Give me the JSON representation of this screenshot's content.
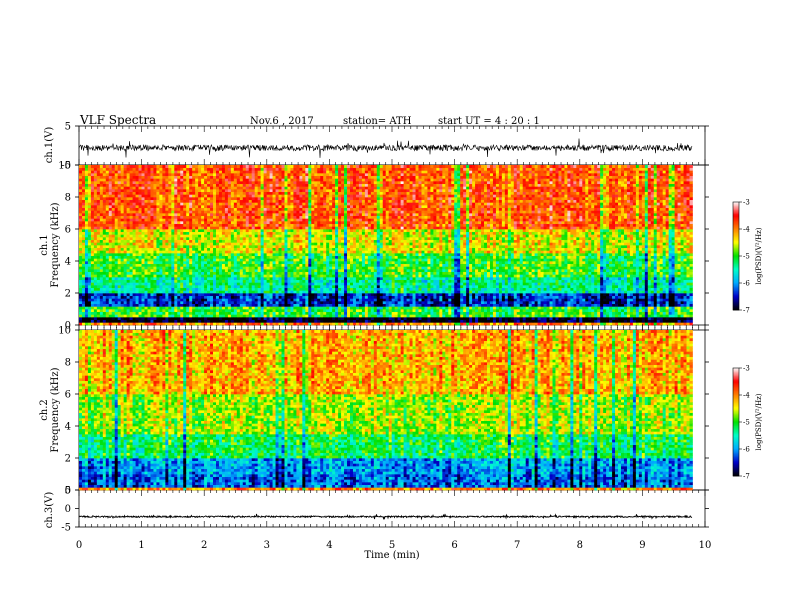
{
  "header": {
    "title": "VLF  Spectra",
    "date": "Nov.6  , 2017",
    "station": "station= ATH",
    "start": "start  UT  =   4  : 20 : 1"
  },
  "chart_data": [
    {
      "type": "line",
      "panel": "ch1-waveform",
      "ylabel": "ch.1(V)",
      "ylim": [
        -5,
        5
      ],
      "yticks": [
        "5",
        "-5"
      ],
      "xlim": [
        0,
        10
      ],
      "grid": false,
      "description_values": {
        "baseline": -0.6,
        "typical_amplitude": 1.5,
        "active_until_min": 9.8
      }
    },
    {
      "type": "heatmap",
      "panel": "ch1-spectrogram",
      "ylabel": "Frequency (kHz)",
      "channel_label": "ch.1",
      "ylim": [
        0,
        10
      ],
      "yticks": [
        "0",
        "2",
        "4",
        "6",
        "8",
        "10"
      ],
      "xlim": [
        0,
        10
      ],
      "data_until_min": 9.8,
      "colorbar": {
        "label": "log(PSD)(V²/Hz)",
        "range": [
          -7,
          -3
        ],
        "ticks": [
          "-3",
          "-4",
          "-5",
          "-6",
          "-7"
        ]
      },
      "frequency_bands": [
        {
          "f_from": 0.0,
          "f_to": 0.2,
          "level": -4.0
        },
        {
          "f_from": 0.2,
          "f_to": 0.5,
          "level": -7.0
        },
        {
          "f_from": 0.5,
          "f_to": 1.2,
          "level": -5.0
        },
        {
          "f_from": 1.2,
          "f_to": 2.0,
          "level": -6.4
        },
        {
          "f_from": 2.0,
          "f_to": 3.0,
          "level": -5.4
        },
        {
          "f_from": 3.0,
          "f_to": 4.5,
          "level": -5.0
        },
        {
          "f_from": 4.5,
          "f_to": 6.0,
          "level": -4.5
        },
        {
          "f_from": 6.0,
          "f_to": 10.0,
          "level": -3.8
        }
      ]
    },
    {
      "type": "heatmap",
      "panel": "ch2-spectrogram",
      "ylabel": "Frequency (kHz)",
      "channel_label": "ch.2",
      "ylim": [
        0,
        10
      ],
      "yticks": [
        "0",
        "2",
        "4",
        "6",
        "8",
        "10"
      ],
      "xlim": [
        0,
        10
      ],
      "data_until_min": 9.8,
      "colorbar": {
        "label": "log(PSD)(V²/Hz)",
        "range": [
          -7,
          -3
        ],
        "ticks": [
          "-3",
          "-4",
          "-5",
          "-6",
          "-7"
        ]
      },
      "frequency_bands": [
        {
          "f_from": 0.0,
          "f_to": 0.2,
          "level": -4.0
        },
        {
          "f_from": 0.2,
          "f_to": 1.0,
          "level": -6.2
        },
        {
          "f_from": 1.0,
          "f_to": 2.0,
          "level": -6.0
        },
        {
          "f_from": 2.0,
          "f_to": 3.5,
          "level": -5.2
        },
        {
          "f_from": 3.5,
          "f_to": 6.0,
          "level": -4.7
        },
        {
          "f_from": 6.0,
          "f_to": 10.0,
          "level": -4.2
        }
      ]
    },
    {
      "type": "line",
      "panel": "ch3-waveform",
      "ylabel": "ch.3(V)",
      "ylim": [
        -5,
        5
      ],
      "yticks": [
        "5",
        "0",
        "-5"
      ],
      "xlim": [
        0,
        10
      ],
      "xlabel": "Time  (min)",
      "xticks": [
        "0",
        "1",
        "2",
        "3",
        "4",
        "5",
        "6",
        "7",
        "8",
        "9",
        "10"
      ],
      "grid": false,
      "description_values": {
        "baseline": -2.2,
        "typical_amplitude": 0.4,
        "active_until_min": 9.8
      }
    }
  ],
  "colors": {
    "axis": "#000000",
    "waveform": "#000000",
    "colormap": [
      "#000000",
      "#0000c8",
      "#00aaff",
      "#00ffc8",
      "#00e000",
      "#ffff00",
      "#ff8000",
      "#ff0000",
      "#ffffff"
    ]
  }
}
